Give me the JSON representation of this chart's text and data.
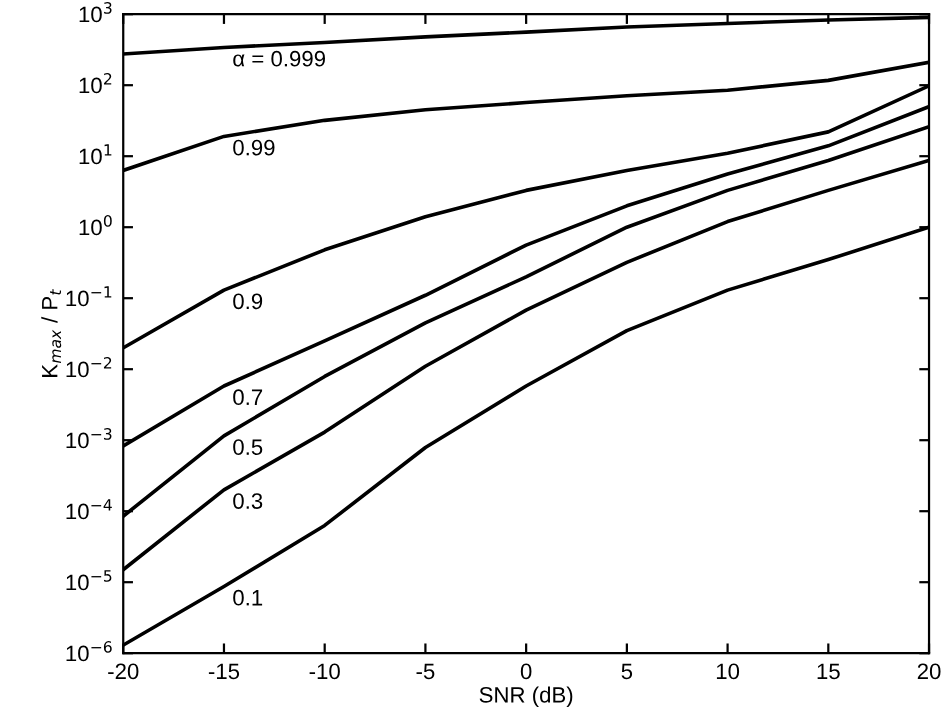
{
  "chart_data": {
    "type": "line",
    "xlabel": "SNR (dB)",
    "ylabel": "K$_{max}$ / P$_{t}$",
    "log": "y",
    "grid": false,
    "legend": false,
    "marker": "none",
    "line_style": "solid",
    "x": [
      -20,
      -15,
      -10,
      -5,
      0,
      5,
      10,
      15,
      20
    ],
    "xlim": [
      -20,
      20
    ],
    "xticks": [
      -20,
      -15,
      -10,
      -5,
      0,
      5,
      10,
      15,
      20
    ],
    "ylim": [
      1e-06,
      1000
    ],
    "yticks": [
      {
        "value": 1e-06,
        "label": "10$^{−6}$"
      },
      {
        "value": 1e-05,
        "label": "10$^{−5}$"
      },
      {
        "value": 0.0001,
        "label": "10$^{−4}$"
      },
      {
        "value": 0.001,
        "label": "10$^{−3}$"
      },
      {
        "value": 0.01,
        "label": "10$^{−2}$"
      },
      {
        "value": 0.1,
        "label": "10$^{−1}$"
      },
      {
        "value": 1,
        "label": "10$^{0}$"
      },
      {
        "value": 10,
        "label": "10$^{1}$"
      },
      {
        "value": 100,
        "label": "10$^{2}$"
      },
      {
        "value": 1000,
        "label": "10$^{3}$"
      }
    ],
    "series": [
      {
        "name": "α = 0.999",
        "color": "#000000",
        "values": [
          275,
          340,
          400,
          480,
          560,
          660,
          740,
          830,
          900
        ]
      },
      {
        "name": "0.99",
        "color": "#000000",
        "values": [
          6.3,
          19,
          32,
          45,
          57,
          71,
          85,
          117,
          210
        ]
      },
      {
        "name": "0.9",
        "color": "#000000",
        "values": [
          0.02,
          0.13,
          0.48,
          1.4,
          3.3,
          6.3,
          11,
          22,
          98
        ]
      },
      {
        "name": "0.7",
        "color": "#000000",
        "values": [
          0.00083,
          0.0058,
          0.025,
          0.11,
          0.56,
          2.0,
          5.6,
          14,
          50
        ]
      },
      {
        "name": "0.5",
        "color": "#000000",
        "values": [
          8.5e-05,
          0.00115,
          0.0079,
          0.045,
          0.2,
          1.0,
          3.3,
          8.7,
          26
        ]
      },
      {
        "name": "0.3",
        "color": "#000000",
        "values": [
          1.5e-05,
          0.0002,
          0.0013,
          0.011,
          0.068,
          0.32,
          1.2,
          3.3,
          8.7
        ]
      },
      {
        "name": "0.1",
        "color": "#000000",
        "values": [
          1.3e-06,
          8.7e-06,
          6.3e-05,
          0.00079,
          0.0058,
          0.035,
          0.13,
          0.35,
          1.0
        ]
      }
    ]
  }
}
